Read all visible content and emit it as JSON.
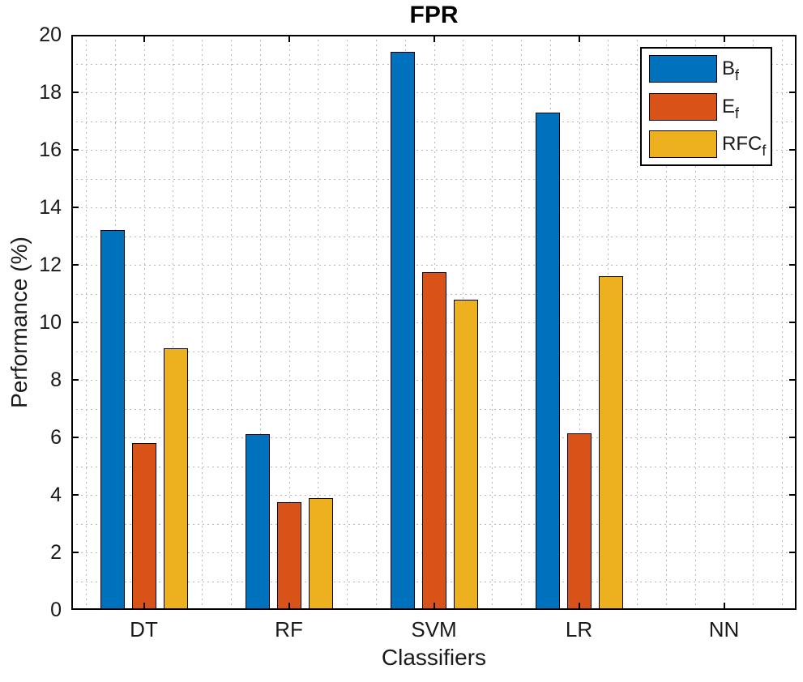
{
  "chart_data": {
    "type": "bar",
    "title": "FPR",
    "xlabel": "Classifiers",
    "ylabel": "Performance (%)",
    "categories": [
      "DT",
      "RF",
      "SVM",
      "LR",
      "NN"
    ],
    "series": [
      {
        "name": "Bf",
        "label_base": "B",
        "label_sub": "f",
        "color": "#0072BD",
        "values": [
          13.2,
          6.1,
          19.4,
          17.3,
          0
        ]
      },
      {
        "name": "Ef",
        "label_base": "E",
        "label_sub": "f",
        "color": "#D95319",
        "values": [
          5.8,
          3.75,
          11.75,
          6.15,
          0
        ]
      },
      {
        "name": "RFCf",
        "label_base": "RFC",
        "label_sub": "f",
        "color": "#EDB120",
        "values": [
          9.1,
          3.9,
          10.8,
          11.6,
          0
        ]
      }
    ],
    "ylim": [
      0,
      20
    ],
    "yticks": [
      0,
      2,
      4,
      6,
      8,
      10,
      12,
      14,
      16,
      18,
      20
    ],
    "y_minor_step": 1,
    "x_minor_lines_per_category": 5,
    "grid_style": "dotted",
    "grid_color": "#b9b9b9",
    "axis_color": "#000000",
    "bar_edge_color": "#000000",
    "legend_position": "top-right"
  }
}
